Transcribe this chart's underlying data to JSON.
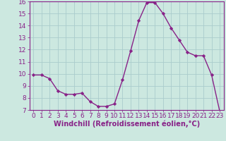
{
  "x": [
    0,
    1,
    2,
    3,
    4,
    5,
    6,
    7,
    8,
    9,
    10,
    11,
    12,
    13,
    14,
    15,
    16,
    17,
    18,
    19,
    20,
    21,
    22,
    23
  ],
  "y": [
    9.9,
    9.9,
    9.6,
    8.6,
    8.3,
    8.3,
    8.4,
    7.7,
    7.3,
    7.3,
    7.5,
    9.5,
    11.9,
    14.4,
    15.9,
    15.9,
    15.0,
    13.8,
    12.8,
    11.8,
    11.5,
    11.5,
    9.9,
    6.9
  ],
  "line_color": "#882288",
  "marker": "D",
  "marker_size": 2.2,
  "linewidth": 1.0,
  "xlabel": "Windchill (Refroidissement éolien,°C)",
  "xlim": [
    -0.5,
    23.5
  ],
  "ylim": [
    7,
    16
  ],
  "yticks": [
    7,
    8,
    9,
    10,
    11,
    12,
    13,
    14,
    15,
    16
  ],
  "xticks": [
    0,
    1,
    2,
    3,
    4,
    5,
    6,
    7,
    8,
    9,
    10,
    11,
    12,
    13,
    14,
    15,
    16,
    17,
    18,
    19,
    20,
    21,
    22,
    23
  ],
  "bg_color": "#cce8e0",
  "grid_color": "#aacccc",
  "tick_color": "#882288",
  "label_color": "#882288",
  "xlabel_fontsize": 7,
  "tick_fontsize": 6.5
}
